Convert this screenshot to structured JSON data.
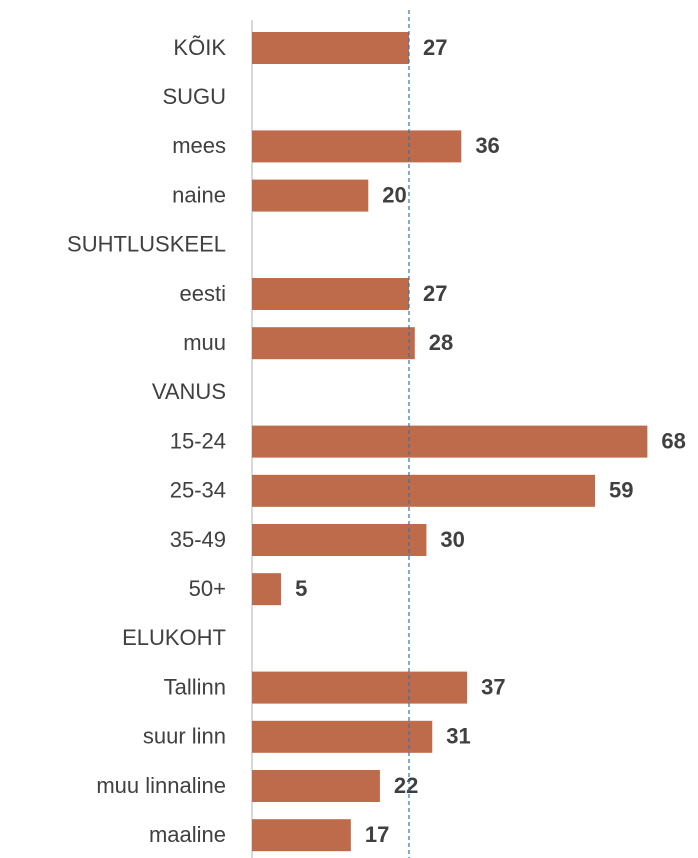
{
  "chart_data": {
    "type": "bar",
    "orientation": "horizontal",
    "categories": [
      "KÕIK",
      "SUGU",
      "mees",
      "naine",
      "SUHTLUSKEEL",
      "eesti",
      "muu",
      "VANUS",
      "15-24",
      "25-34",
      "35-49",
      "50+",
      "ELUKOHT",
      "Tallinn",
      "suur linn",
      "muu linnaline",
      "maaline"
    ],
    "values": [
      27,
      null,
      36,
      20,
      null,
      27,
      28,
      null,
      68,
      59,
      30,
      5,
      null,
      37,
      31,
      22,
      17
    ],
    "color": "#bd6b4a",
    "xlim": [
      0,
      70
    ],
    "reference_value": 27,
    "reference_color": "#2e75b6"
  }
}
